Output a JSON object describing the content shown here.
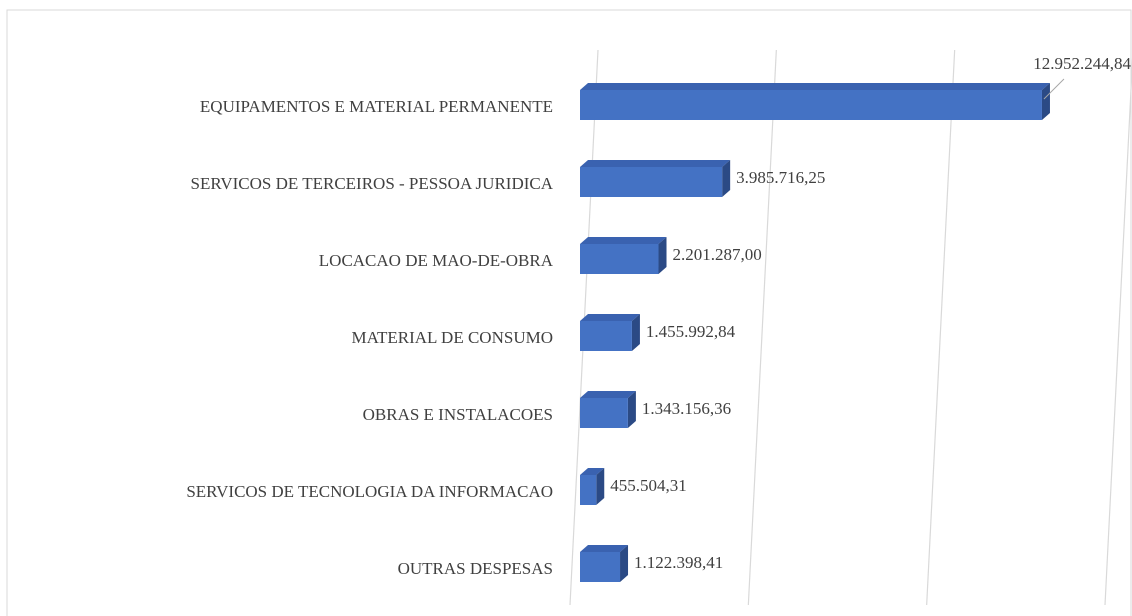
{
  "chart_data": {
    "type": "bar",
    "orientation": "horizontal",
    "three_d": true,
    "categories": [
      "EQUIPAMENTOS E MATERIAL PERMANENTE",
      "SERVICOS DE TERCEIROS - PESSOA JURIDICA",
      "LOCACAO DE MAO-DE-OBRA",
      "MATERIAL DE CONSUMO",
      "OBRAS E INSTALACOES",
      "SERVICOS DE TECNOLOGIA DA INFORMACAO",
      "OUTRAS DESPESAS"
    ],
    "values": [
      12952244.84,
      3985716.25,
      2201287.0,
      1455992.84,
      1343156.36,
      455504.31,
      1122398.41
    ],
    "value_labels": [
      "12.952.244,84",
      "3.985.716,25",
      "2.201.287,00",
      "1.455.992,84",
      "1.343.156,36",
      "455.504,31",
      "1.122.398,41"
    ],
    "color": "#4472c4",
    "xlim": [
      0,
      15000000
    ],
    "xticks": [
      0,
      5000000,
      10000000,
      15000000
    ],
    "grid": true
  }
}
